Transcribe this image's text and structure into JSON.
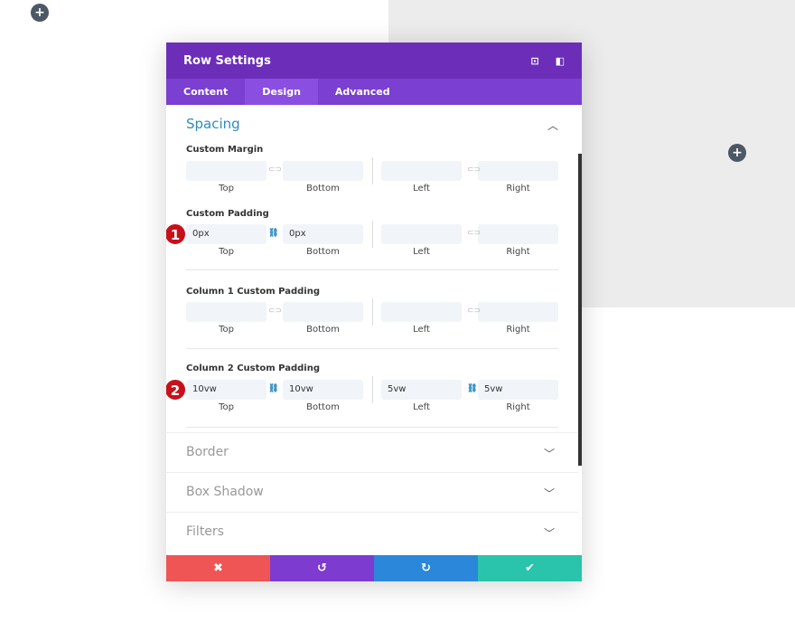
{
  "modal": {
    "title": "Row Settings",
    "tabs": [
      "Content",
      "Design",
      "Advanced"
    ],
    "active_tab": "Design"
  },
  "spacing": {
    "title": "Spacing",
    "groups": [
      {
        "label": "Custom Margin",
        "values": [
          "",
          "",
          "",
          ""
        ],
        "linked": [
          false,
          false
        ]
      },
      {
        "label": "Custom Padding",
        "values": [
          "0px",
          "0px",
          "",
          ""
        ],
        "linked": [
          true,
          false
        ]
      },
      {
        "label": "Column 1 Custom Padding",
        "values": [
          "",
          "",
          "",
          ""
        ],
        "linked": [
          false,
          false
        ]
      },
      {
        "label": "Column 2 Custom Padding",
        "values": [
          "10vw",
          "10vw",
          "5vw",
          "5vw"
        ],
        "linked": [
          true,
          true
        ]
      }
    ],
    "captions": [
      "Top",
      "Bottom",
      "Left",
      "Right"
    ]
  },
  "badges": [
    "1",
    "2"
  ],
  "collapsed": [
    "Border",
    "Box Shadow",
    "Filters"
  ],
  "footer": {
    "cancel": "✖",
    "undo": "↺",
    "redo": "↻",
    "save": "✔"
  },
  "colors": {
    "header": "#6c2eb9",
    "tabs": "#7b3fd1",
    "cancel": "#ef5555",
    "undo": "#7e3bd0",
    "redo": "#2b87da",
    "save": "#29c4a9",
    "accent": "#2e8bc0"
  }
}
